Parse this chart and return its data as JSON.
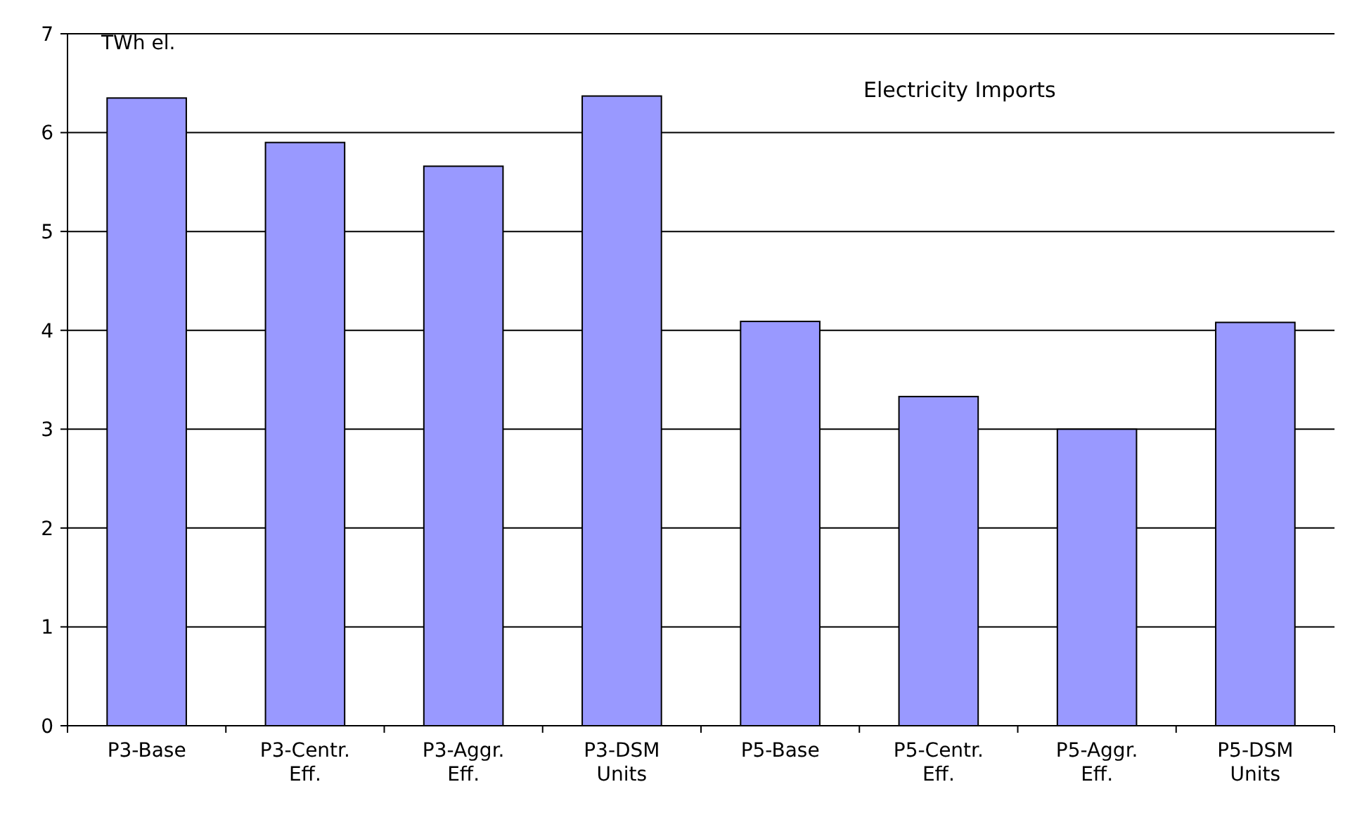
{
  "chart_data": {
    "type": "bar",
    "title": "Electricity Imports",
    "ylabel": "TWh el.",
    "categories": [
      "P3-Base",
      "P3-Centr. Eff.",
      "P3-Aggr. Eff.",
      "P3-DSM Units",
      "P5-Base",
      "P5-Centr. Eff.",
      "P5-Aggr. Eff.",
      "P5-DSM Units"
    ],
    "values": [
      6.35,
      5.9,
      5.66,
      6.37,
      4.09,
      3.33,
      3.0,
      4.08
    ],
    "color": "#9999ff",
    "ylim": [
      0,
      7
    ],
    "yticks": [
      0,
      1,
      2,
      3,
      4,
      5,
      6,
      7
    ],
    "grid": "y"
  }
}
